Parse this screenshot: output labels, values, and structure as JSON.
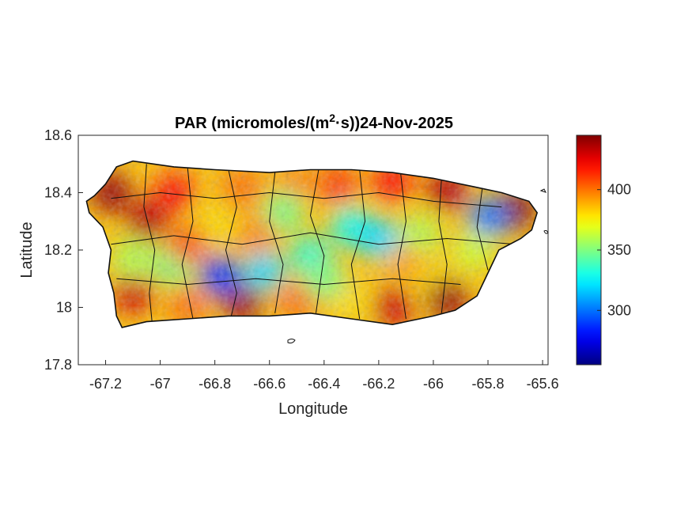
{
  "chart_data": {
    "type": "heatmap",
    "title_main": "PAR (micromoles/(m",
    "title_sup": "2",
    "title_rest": "·s))24-Nov-2025",
    "xlabel": "Longitude",
    "ylabel": "Latitude",
    "xlim": [
      -67.3,
      -65.58
    ],
    "ylim": [
      17.8,
      18.6
    ],
    "x_ticks": [
      -67.2,
      -67,
      -66.8,
      -66.6,
      -66.4,
      -66.2,
      -66,
      -65.8,
      -65.6
    ],
    "x_tick_labels": [
      "-67.2",
      "-67",
      "-66.8",
      "-66.6",
      "-66.4",
      "-66.2",
      "-66",
      "-65.8",
      "-65.6"
    ],
    "y_ticks": [
      17.8,
      18,
      18.2,
      18.4,
      18.6
    ],
    "y_tick_labels": [
      "17.8",
      "18",
      "18.2",
      "18.4",
      "18.6"
    ],
    "colorbar": {
      "colormap": "jet",
      "range": [
        255,
        445
      ],
      "ticks": [
        300,
        350,
        400
      ],
      "tick_labels": [
        "300",
        "350",
        "400"
      ]
    },
    "grid": false,
    "region_outline_lonlat": [
      [
        -67.27,
        18.37
      ],
      [
        -67.24,
        18.39
      ],
      [
        -67.2,
        18.43
      ],
      [
        -67.16,
        18.49
      ],
      [
        -67.1,
        18.51
      ],
      [
        -66.95,
        18.49
      ],
      [
        -66.8,
        18.48
      ],
      [
        -66.6,
        18.47
      ],
      [
        -66.45,
        18.48
      ],
      [
        -66.3,
        18.48
      ],
      [
        -66.15,
        18.47
      ],
      [
        -66.0,
        18.45
      ],
      [
        -65.85,
        18.42
      ],
      [
        -65.75,
        18.4
      ],
      [
        -65.65,
        18.37
      ],
      [
        -65.62,
        18.33
      ],
      [
        -65.64,
        18.27
      ],
      [
        -65.68,
        18.24
      ],
      [
        -65.76,
        18.2
      ],
      [
        -65.8,
        18.12
      ],
      [
        -65.84,
        18.04
      ],
      [
        -65.92,
        17.99
      ],
      [
        -66.0,
        17.97
      ],
      [
        -66.15,
        17.94
      ],
      [
        -66.3,
        17.96
      ],
      [
        -66.45,
        17.98
      ],
      [
        -66.6,
        17.97
      ],
      [
        -66.75,
        17.97
      ],
      [
        -66.9,
        17.96
      ],
      [
        -67.05,
        17.95
      ],
      [
        -67.14,
        17.93
      ],
      [
        -67.16,
        17.97
      ],
      [
        -67.17,
        18.05
      ],
      [
        -67.19,
        18.12
      ],
      [
        -67.18,
        18.2
      ],
      [
        -67.21,
        18.28
      ],
      [
        -67.26,
        18.33
      ]
    ],
    "value_hotspots": [
      {
        "lon": -67.18,
        "lat": 18.4,
        "value": 440
      },
      {
        "lon": -67.05,
        "lat": 18.3,
        "value": 435
      },
      {
        "lon": -66.95,
        "lat": 18.4,
        "value": 420
      },
      {
        "lon": -66.7,
        "lat": 18.42,
        "value": 400
      },
      {
        "lon": -66.5,
        "lat": 18.44,
        "value": 395
      },
      {
        "lon": -66.35,
        "lat": 18.43,
        "value": 410
      },
      {
        "lon": -66.15,
        "lat": 18.44,
        "value": 420
      },
      {
        "lon": -65.95,
        "lat": 18.41,
        "value": 435
      },
      {
        "lon": -65.7,
        "lat": 18.34,
        "value": 445
      },
      {
        "lon": -65.8,
        "lat": 18.31,
        "value": 300
      },
      {
        "lon": -65.85,
        "lat": 18.2,
        "value": 365
      },
      {
        "lon": -66.0,
        "lat": 18.1,
        "value": 380
      },
      {
        "lon": -65.95,
        "lat": 18.03,
        "value": 440
      },
      {
        "lon": -66.15,
        "lat": 18.0,
        "value": 430
      },
      {
        "lon": -66.3,
        "lat": 18.02,
        "value": 380
      },
      {
        "lon": -66.5,
        "lat": 18.02,
        "value": 400
      },
      {
        "lon": -66.7,
        "lat": 18.02,
        "value": 440
      },
      {
        "lon": -66.9,
        "lat": 18.0,
        "value": 400
      },
      {
        "lon": -67.1,
        "lat": 18.05,
        "value": 430
      },
      {
        "lon": -67.1,
        "lat": 18.17,
        "value": 360
      },
      {
        "lon": -66.95,
        "lat": 18.15,
        "value": 350
      },
      {
        "lon": -66.78,
        "lat": 18.11,
        "value": 290
      },
      {
        "lon": -66.62,
        "lat": 18.13,
        "value": 320
      },
      {
        "lon": -66.45,
        "lat": 18.18,
        "value": 335
      },
      {
        "lon": -66.3,
        "lat": 18.28,
        "value": 330
      },
      {
        "lon": -66.2,
        "lat": 18.24,
        "value": 320
      },
      {
        "lon": -66.05,
        "lat": 18.25,
        "value": 360
      },
      {
        "lon": -66.55,
        "lat": 18.33,
        "value": 350
      },
      {
        "lon": -66.8,
        "lat": 18.28,
        "value": 380
      },
      {
        "lon": -66.4,
        "lat": 18.1,
        "value": 350
      },
      {
        "lon": -66.1,
        "lat": 18.15,
        "value": 390
      },
      {
        "lon": -66.65,
        "lat": 18.25,
        "value": 395
      },
      {
        "lon": -66.9,
        "lat": 18.22,
        "value": 405
      }
    ],
    "base_value": 385
  }
}
